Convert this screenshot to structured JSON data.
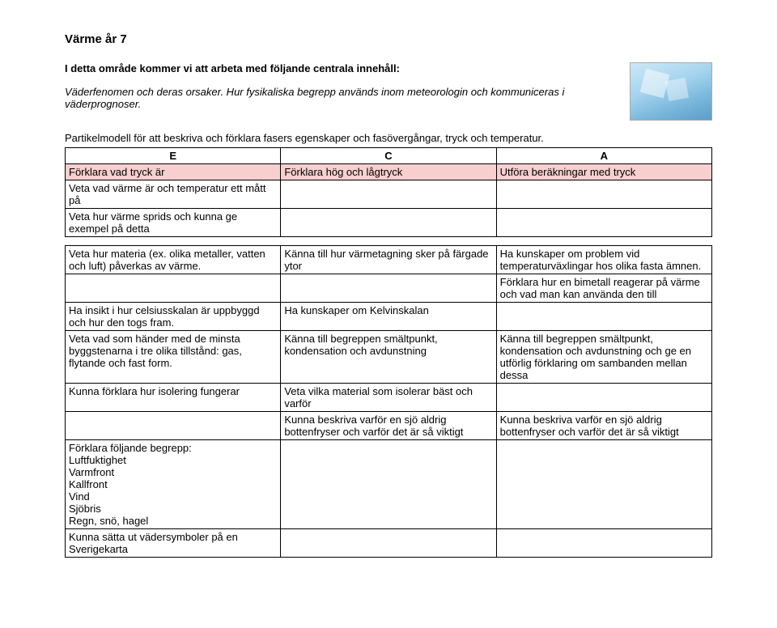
{
  "title": "Värme år 7",
  "intro_bold": "I detta område kommer vi att arbeta med följande centrala innehåll:",
  "intro_italic": "Väderfenomen och deras orsaker. Hur fysikaliska begrepp används inom meteorologin och kommuniceras i väderprognoser.",
  "para": "Partikelmodell för att beskriva och förklara fasers egenskaper och fasövergångar, tryck och temperatur.",
  "headers": {
    "e": "E",
    "c": "C",
    "a": "A"
  },
  "rows": [
    {
      "e": "Förklara vad tryck är",
      "c": "Förklara hög och lågtryck",
      "a": "Utföra beräkningar med tryck",
      "pink": true
    },
    {
      "e": "Veta vad värme är och temperatur ett mått på",
      "c": "",
      "a": "",
      "pink": false
    },
    {
      "e": "Veta hur värme sprids och kunna ge exempel på detta",
      "c": "",
      "a": "",
      "pink": false
    }
  ],
  "rows2": [
    {
      "e": "Veta hur materia (ex. olika metaller, vatten och luft) påverkas av värme.",
      "c": "Känna till hur värmetagning sker på färgade ytor",
      "a": "Ha kunskaper om problem vid temperaturväxlingar hos olika fasta ämnen.",
      "atall": false
    },
    {
      "e": "",
      "c": "",
      "a": "Förklara hur en bimetall reagerar på värme och vad man kan använda den till"
    },
    {
      "e": "Ha insikt i hur celsiusskalan är uppbyggd och hur den togs fram.",
      "c": "Ha kunskaper om Kelvinskalan",
      "a": ""
    },
    {
      "e": "Veta vad som händer med de minsta byggstenarna i tre olika tillstånd: gas, flytande och fast form.",
      "c": "Känna till begreppen smältpunkt, kondensation och avdunstning",
      "a": "Känna till begreppen smältpunkt, kondensation och avdunstning och ge en utförlig förklaring om sambanden mellan dessa"
    },
    {
      "e": "Kunna förklara hur isolering fungerar",
      "c": "Veta vilka material som isolerar bäst och varför",
      "a": ""
    },
    {
      "e": "",
      "c": "Kunna beskriva varför en sjö aldrig bottenfryser och varför det är så viktigt",
      "a": "Kunna beskriva varför en sjö aldrig bottenfryser och varför det är så viktigt"
    },
    {
      "e": "Förklara följande begrepp:\nLuftfuktighet\nVarmfront\nKallfront\nVind\nSjöbris\nRegn, snö, hagel",
      "c": "",
      "a": ""
    },
    {
      "e": "Kunna sätta ut vädersymboler på en Sverigekarta",
      "c": "",
      "a": "",
      "cut": true
    }
  ],
  "colors": {
    "pink": "#f8cfcf",
    "border": "#000000",
    "text": "#000000",
    "background": "#ffffff"
  }
}
